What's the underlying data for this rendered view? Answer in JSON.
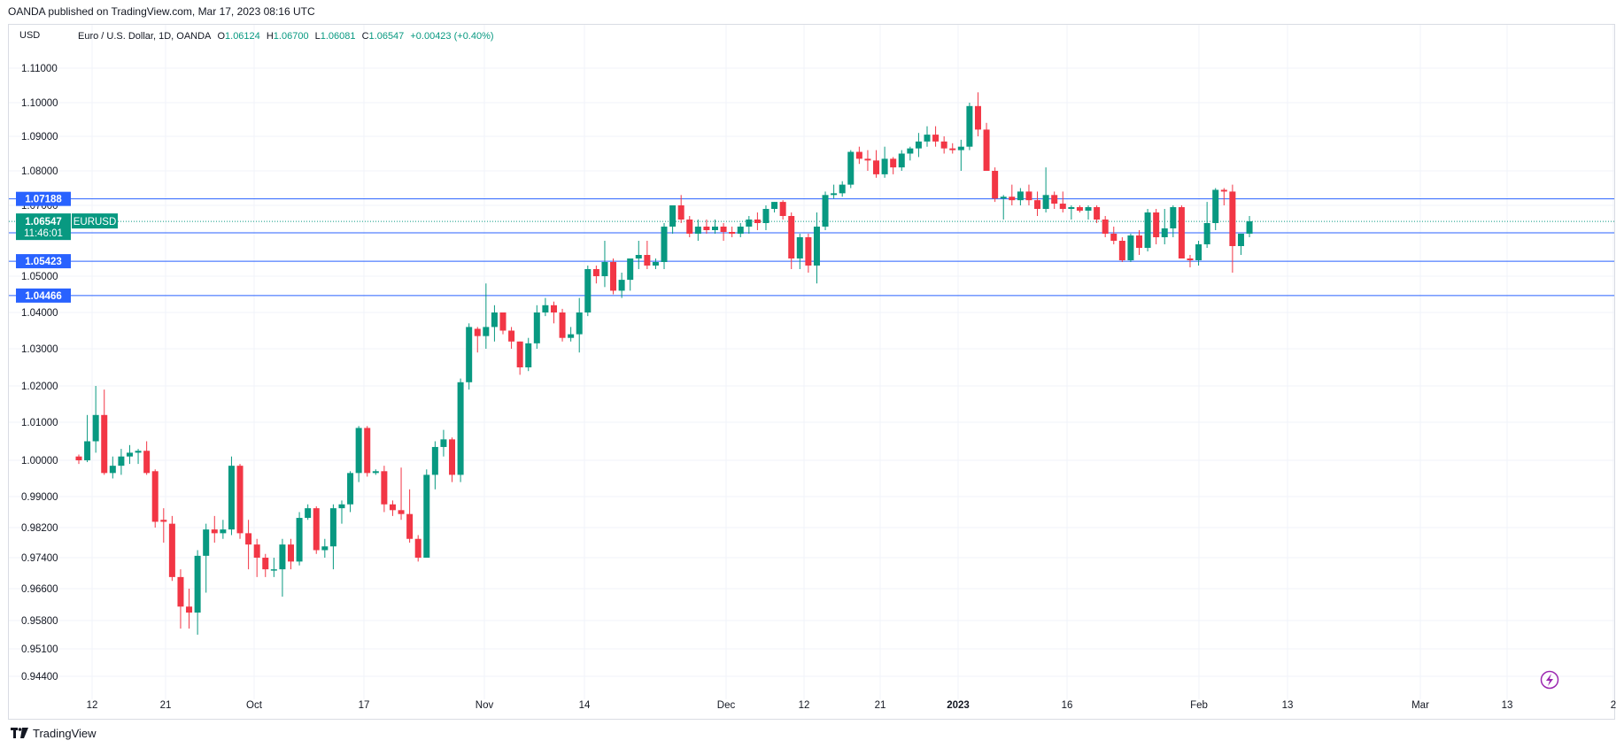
{
  "header": {
    "published_by": "OANDA published on TradingView.com, Mar 17, 2023 08:16 UTC"
  },
  "legend": {
    "currency": "USD",
    "symbol_text": "Euro / U.S. Dollar, 1D, OANDA",
    "open_label": "O",
    "open": "1.06124",
    "high_label": "H",
    "high": "1.06700",
    "low_label": "L",
    "low": "1.06081",
    "close_label": "C",
    "close": "1.06547",
    "change": "+0.00423 (+0.40%)"
  },
  "footer": {
    "brand": "TradingView"
  },
  "colors": {
    "up": "#089981",
    "down": "#f23645",
    "level_line": "#2962ff",
    "grid": "#f0f3fa",
    "text": "#131722"
  },
  "icons": {
    "footer_logo": "tradingview-logo-icon",
    "alert": "lightning-icon"
  },
  "chart_data": {
    "type": "candlestick",
    "symbol": "EURUSD",
    "timeframe": "1D",
    "y_ticks": [
      "1.11000",
      "1.10000",
      "1.09000",
      "1.08000",
      "1.07000",
      "1.05000",
      "1.04000",
      "1.03000",
      "1.02000",
      "1.01000",
      "1.00000",
      "0.99000",
      "0.98200",
      "0.97400",
      "0.96600",
      "0.95800",
      "0.95100",
      "0.94400"
    ],
    "x_ticks": [
      {
        "label": "12",
        "bold": false
      },
      {
        "label": "21",
        "bold": false
      },
      {
        "label": "Oct",
        "bold": false
      },
      {
        "label": "17",
        "bold": false
      },
      {
        "label": "Nov",
        "bold": false
      },
      {
        "label": "14",
        "bold": false
      },
      {
        "label": "Dec",
        "bold": false
      },
      {
        "label": "12",
        "bold": false
      },
      {
        "label": "21",
        "bold": false
      },
      {
        "label": "2023",
        "bold": true
      },
      {
        "label": "16",
        "bold": false
      },
      {
        "label": "Feb",
        "bold": false
      },
      {
        "label": "13",
        "bold": false
      },
      {
        "label": "Mar",
        "bold": false
      },
      {
        "label": "13",
        "bold": false
      },
      {
        "label": "2",
        "bold": false
      }
    ],
    "horizontal_levels": [
      "1.07188",
      "1.06224",
      "1.05423",
      "1.04466"
    ],
    "last_price": "1.06547",
    "countdown": "11:46:01",
    "candles": [
      [
        1.001,
        1.0015,
        0.999,
        1.0
      ],
      [
        1.0,
        1.012,
        0.9995,
        1.005
      ],
      [
        1.005,
        1.02,
        1.002,
        1.012
      ],
      [
        1.012,
        1.019,
        0.996,
        0.9965
      ],
      [
        0.9965,
        1.001,
        0.995,
        0.9985
      ],
      [
        0.9985,
        1.003,
        0.996,
        1.001
      ],
      [
        1.001,
        1.004,
        0.999,
        1.002
      ],
      [
        1.002,
        1.003,
        0.999,
        1.0025
      ],
      [
        1.0025,
        1.005,
        0.996,
        0.9965
      ],
      [
        0.997,
        0.9975,
        0.982,
        0.9835
      ],
      [
        0.984,
        0.987,
        0.978,
        0.9835
      ],
      [
        0.983,
        0.985,
        0.968,
        0.969
      ],
      [
        0.969,
        0.971,
        0.956,
        0.9615
      ],
      [
        0.9615,
        0.966,
        0.956,
        0.96
      ],
      [
        0.96,
        0.976,
        0.9545,
        0.9745
      ],
      [
        0.9745,
        0.983,
        0.965,
        0.9815
      ],
      [
        0.9815,
        0.985,
        0.978,
        0.9805
      ],
      [
        0.9805,
        0.984,
        0.979,
        0.9815
      ],
      [
        0.9815,
        1.001,
        0.98,
        0.9985
      ],
      [
        0.9985,
        0.999,
        0.979,
        0.9805
      ],
      [
        0.9805,
        0.984,
        0.971,
        0.9775
      ],
      [
        0.9775,
        0.979,
        0.969,
        0.974
      ],
      [
        0.974,
        0.975,
        0.969,
        0.971
      ],
      [
        0.971,
        0.974,
        0.969,
        0.971
      ],
      [
        0.971,
        0.979,
        0.964,
        0.9775
      ],
      [
        0.9775,
        0.979,
        0.971,
        0.973
      ],
      [
        0.973,
        0.986,
        0.972,
        0.9845
      ],
      [
        0.9845,
        0.988,
        0.984,
        0.987
      ],
      [
        0.987,
        0.9875,
        0.975,
        0.976
      ],
      [
        0.976,
        0.979,
        0.974,
        0.977
      ],
      [
        0.977,
        0.988,
        0.971,
        0.987
      ],
      [
        0.987,
        0.989,
        0.983,
        0.988
      ],
      [
        0.988,
        0.997,
        0.986,
        0.9965
      ],
      [
        0.9965,
        1.009,
        0.994,
        1.0085
      ],
      [
        1.0085,
        1.009,
        0.9955,
        0.9965
      ],
      [
        0.9965,
        0.9975,
        0.996,
        0.997
      ],
      [
        0.997,
        0.9985,
        0.986,
        0.988
      ],
      [
        0.988,
        0.989,
        0.985,
        0.9865
      ],
      [
        0.9865,
        0.998,
        0.984,
        0.9855
      ],
      [
        0.9855,
        0.992,
        0.978,
        0.979
      ],
      [
        0.979,
        0.98,
        0.973,
        0.974
      ],
      [
        0.974,
        0.9975,
        0.974,
        0.996
      ],
      [
        0.996,
        1.005,
        0.992,
        1.0035
      ],
      [
        1.0035,
        1.008,
        1.001,
        1.0055
      ],
      [
        1.0055,
        1.006,
        0.994,
        0.996
      ],
      [
        0.996,
        1.022,
        0.994,
        1.021
      ],
      [
        1.021,
        1.037,
        1.019,
        1.036
      ],
      [
        1.0355,
        1.036,
        1.029,
        1.0335
      ],
      [
        1.0335,
        1.048,
        1.03,
        1.036
      ],
      [
        1.036,
        1.042,
        1.032,
        1.04
      ],
      [
        1.04,
        1.04,
        1.034,
        1.035
      ],
      [
        1.035,
        1.036,
        1.03,
        1.032
      ],
      [
        1.032,
        1.032,
        1.023,
        1.025
      ],
      [
        1.025,
        1.033,
        1.024,
        1.0315
      ],
      [
        1.0315,
        1.042,
        1.03,
        1.04
      ],
      [
        1.04,
        1.044,
        1.039,
        1.042
      ],
      [
        1.042,
        1.043,
        1.037,
        1.04
      ],
      [
        1.04,
        1.041,
        1.032,
        1.033
      ],
      [
        1.033,
        1.036,
        1.032,
        1.034
      ],
      [
        1.034,
        1.044,
        1.029,
        1.04
      ],
      [
        1.04,
        1.053,
        1.039,
        1.052
      ],
      [
        1.052,
        1.053,
        1.048,
        1.05
      ],
      [
        1.05,
        1.06,
        1.047,
        1.054
      ],
      [
        1.054,
        1.055,
        1.045,
        1.046
      ],
      [
        1.046,
        1.051,
        1.044,
        1.049
      ],
      [
        1.049,
        1.055,
        1.046,
        1.055
      ],
      [
        1.055,
        1.06,
        1.052,
        1.056
      ],
      [
        1.056,
        1.06,
        1.052,
        1.053
      ],
      [
        1.053,
        1.055,
        1.052,
        1.054
      ],
      [
        1.054,
        1.065,
        1.052,
        1.064
      ],
      [
        1.064,
        1.07,
        1.062,
        1.07
      ],
      [
        1.07,
        1.073,
        1.065,
        1.066
      ],
      [
        1.066,
        1.067,
        1.061,
        1.062
      ],
      [
        1.062,
        1.066,
        1.06,
        1.064
      ],
      [
        1.064,
        1.066,
        1.062,
        1.063
      ],
      [
        1.063,
        1.066,
        1.062,
        1.064
      ],
      [
        1.064,
        1.065,
        1.06,
        1.0625
      ],
      [
        1.0625,
        1.064,
        1.061,
        1.062
      ],
      [
        1.062,
        1.065,
        1.061,
        1.064
      ],
      [
        1.064,
        1.067,
        1.062,
        1.066
      ],
      [
        1.066,
        1.068,
        1.063,
        1.065
      ],
      [
        1.065,
        1.07,
        1.063,
        1.069
      ],
      [
        1.069,
        1.071,
        1.068,
        1.071
      ],
      [
        1.071,
        1.0715,
        1.066,
        1.067
      ],
      [
        1.067,
        1.068,
        1.052,
        1.055
      ],
      [
        1.055,
        1.062,
        1.052,
        1.061
      ],
      [
        1.061,
        1.062,
        1.051,
        1.053
      ],
      [
        1.053,
        1.068,
        1.048,
        1.064
      ],
      [
        1.064,
        1.074,
        1.063,
        1.073
      ],
      [
        1.073,
        1.076,
        1.072,
        1.0735
      ],
      [
        1.0735,
        1.077,
        1.0725,
        1.076
      ],
      [
        1.076,
        1.086,
        1.075,
        1.0855
      ],
      [
        1.0855,
        1.087,
        1.082,
        1.0835
      ],
      [
        1.0835,
        1.086,
        1.08,
        1.083
      ],
      [
        1.083,
        1.086,
        1.078,
        1.079
      ],
      [
        1.079,
        1.087,
        1.078,
        1.0835
      ],
      [
        1.0835,
        1.084,
        1.079,
        1.081
      ],
      [
        1.081,
        1.086,
        1.08,
        1.085
      ],
      [
        1.085,
        1.087,
        1.083,
        1.0865
      ],
      [
        1.0865,
        1.091,
        1.084,
        1.0885
      ],
      [
        1.0885,
        1.093,
        1.087,
        1.0905
      ],
      [
        1.0905,
        1.093,
        1.087,
        1.0885
      ],
      [
        1.0885,
        1.09,
        1.085,
        1.0865
      ],
      [
        1.0865,
        1.088,
        1.085,
        1.086
      ],
      [
        1.086,
        1.089,
        1.08,
        1.087
      ],
      [
        1.087,
        1.1,
        1.086,
        1.099
      ],
      [
        1.099,
        1.103,
        1.09,
        1.092
      ],
      [
        1.092,
        1.094,
        1.08,
        1.08
      ],
      [
        1.08,
        1.081,
        1.071,
        1.072
      ],
      [
        1.072,
        1.073,
        1.066,
        1.0725
      ],
      [
        1.0725,
        1.076,
        1.07,
        1.0715
      ],
      [
        1.0715,
        1.075,
        1.07,
        1.074
      ],
      [
        1.074,
        1.076,
        1.07,
        1.0715
      ],
      [
        1.0715,
        1.074,
        1.067,
        1.069
      ],
      [
        1.069,
        1.081,
        1.068,
        1.073
      ],
      [
        1.073,
        1.074,
        1.069,
        1.0705
      ],
      [
        1.0705,
        1.074,
        1.068,
        1.069
      ],
      [
        1.069,
        1.07,
        1.066,
        1.0695
      ],
      [
        1.0695,
        1.07,
        1.068,
        1.0685
      ],
      [
        1.0685,
        1.07,
        1.066,
        1.0695
      ],
      [
        1.0695,
        1.07,
        1.065,
        1.066
      ],
      [
        1.066,
        1.067,
        1.061,
        1.062
      ],
      [
        1.062,
        1.064,
        1.059,
        1.06
      ],
      [
        1.06,
        1.061,
        1.054,
        1.0545
      ],
      [
        1.0545,
        1.062,
        1.054,
        1.0615
      ],
      [
        1.0615,
        1.063,
        1.056,
        1.058
      ],
      [
        1.058,
        1.069,
        1.057,
        1.068
      ],
      [
        1.068,
        1.069,
        1.059,
        1.061
      ],
      [
        1.061,
        1.069,
        1.059,
        1.0635
      ],
      [
        1.0635,
        1.07,
        1.061,
        1.0695
      ],
      [
        1.0695,
        1.07,
        1.055,
        1.055
      ],
      [
        1.055,
        1.056,
        1.0525,
        1.0545
      ],
      [
        1.0545,
        1.06,
        1.053,
        1.059
      ],
      [
        1.059,
        1.071,
        1.058,
        1.065
      ],
      [
        1.065,
        1.075,
        1.063,
        1.0745
      ],
      [
        1.0745,
        1.075,
        1.07,
        1.074
      ],
      [
        1.074,
        1.076,
        1.051,
        1.0585
      ],
      [
        1.0585,
        1.062,
        1.056,
        1.062
      ],
      [
        1.062,
        1.067,
        1.061,
        1.0655
      ]
    ]
  }
}
